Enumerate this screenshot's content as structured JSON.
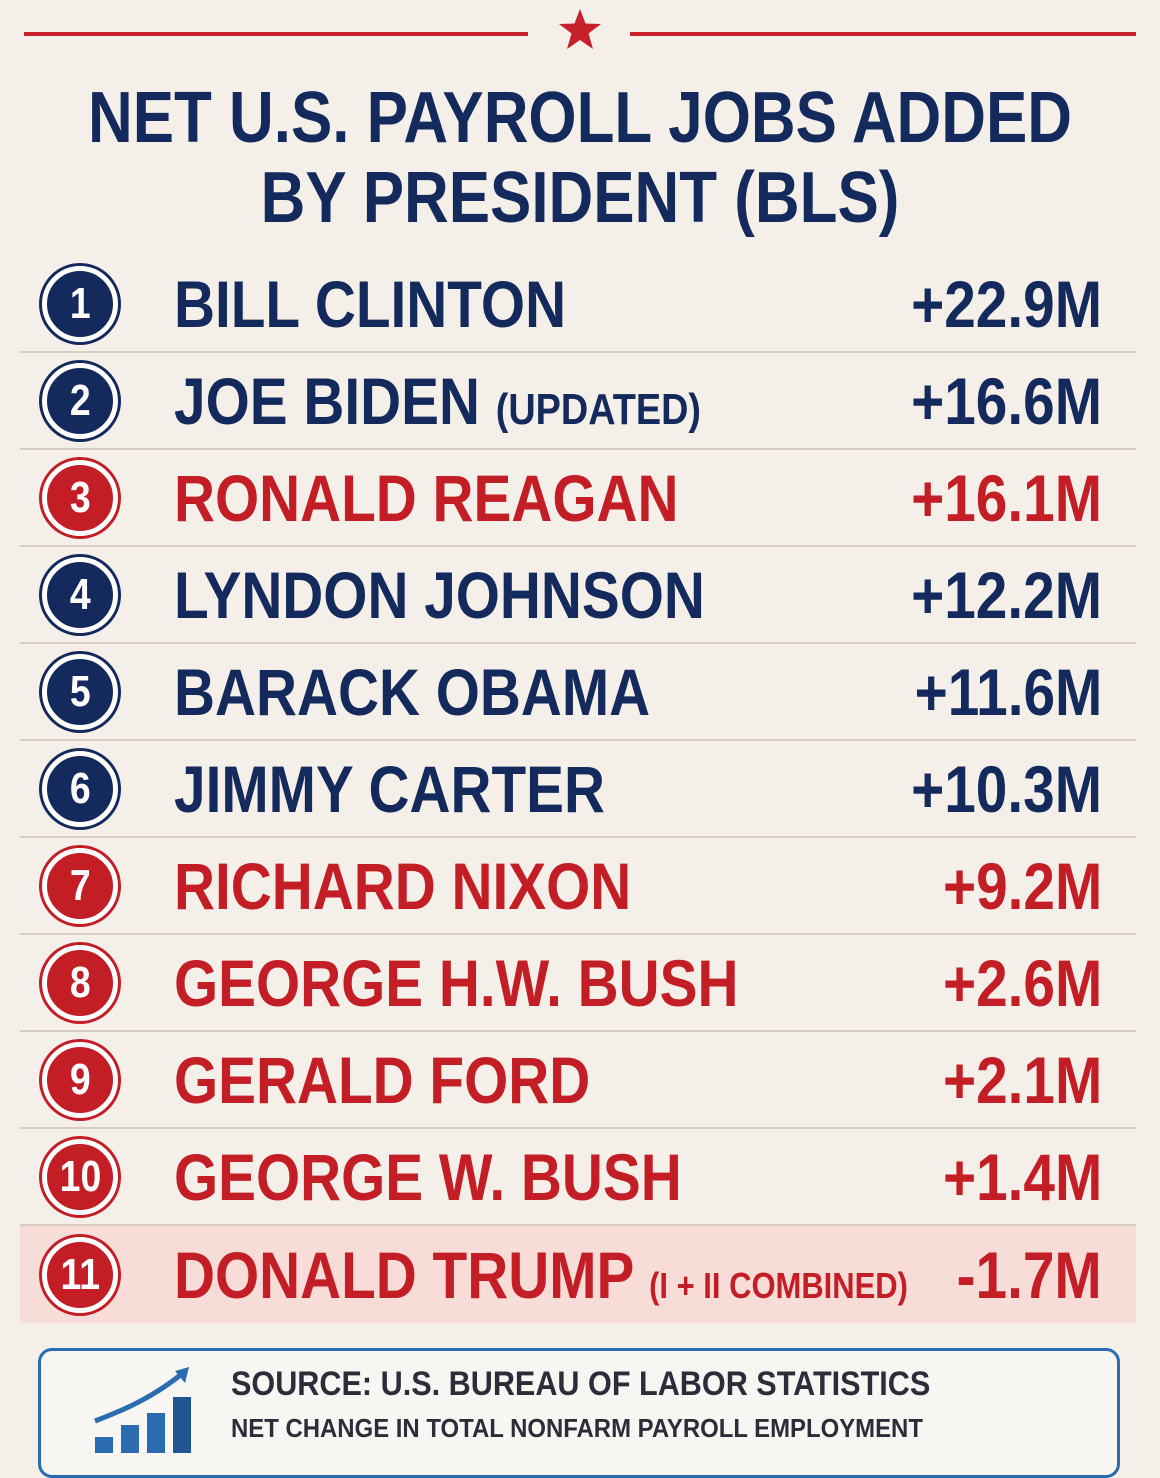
{
  "header": {
    "title_line1": "NET U.S. PAYROLL JOBS ADDED",
    "title_line2": "BY PRESIDENT (BLS)"
  },
  "colors": {
    "navy": "#142a5c",
    "red": "#c31d26",
    "background": "#f4efe8",
    "highlight": "#f7dcd8"
  },
  "chart_data": {
    "type": "table",
    "title": "NET U.S. PAYROLL JOBS ADDED BY PRESIDENT (BLS)",
    "columns": [
      "rank",
      "president",
      "net jobs"
    ],
    "rows": [
      {
        "rank": "1",
        "name": "BILL CLINTON",
        "note": "",
        "label": "+22.9M",
        "value": 22.9,
        "color": "blue"
      },
      {
        "rank": "2",
        "name": "JOE BIDEN",
        "note": "(UPDATED)",
        "label": "+16.6M",
        "value": 16.6,
        "color": "blue"
      },
      {
        "rank": "3",
        "name": "RONALD REAGAN",
        "note": "",
        "label": "+16.1M",
        "value": 16.1,
        "color": "red"
      },
      {
        "rank": "4",
        "name": "LYNDON JOHNSON",
        "note": "",
        "label": "+12.2M",
        "value": 12.2,
        "color": "blue"
      },
      {
        "rank": "5",
        "name": "BARACK OBAMA",
        "note": "",
        "label": "+11.6M",
        "value": 11.6,
        "color": "blue"
      },
      {
        "rank": "6",
        "name": "JIMMY CARTER",
        "note": "",
        "label": "+10.3M",
        "value": 10.3,
        "color": "blue"
      },
      {
        "rank": "7",
        "name": "RICHARD NIXON",
        "note": "",
        "label": "+9.2M",
        "value": 9.2,
        "color": "red"
      },
      {
        "rank": "8",
        "name": "GEORGE H.W. BUSH",
        "note": "",
        "label": "+2.6M",
        "value": 2.6,
        "color": "red"
      },
      {
        "rank": "9",
        "name": "GERALD FORD",
        "note": "",
        "label": "+2.1M",
        "value": 2.1,
        "color": "red"
      },
      {
        "rank": "10",
        "name": "GEORGE W. BUSH",
        "note": "",
        "label": "+1.4M",
        "value": 1.4,
        "color": "red"
      },
      {
        "rank": "11",
        "name": "DONALD TRUMP",
        "note": "(I + II COMBINED)",
        "label": "-1.7M",
        "value": -1.7,
        "color": "red"
      }
    ]
  },
  "footer": {
    "source": "SOURCE: U.S. BUREAU OF LABOR STATISTICS",
    "measure": "NET CHANGE IN TOTAL NONFARM PAYROLL EMPLOYMENT",
    "icon": "rising-bar-chart-icon"
  }
}
